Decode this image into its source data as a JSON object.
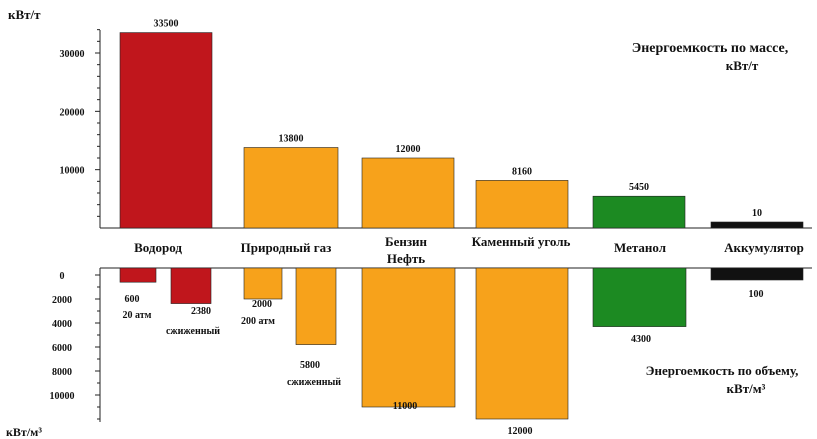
{
  "chart_data": [
    {
      "type": "bar",
      "title": "Энергоемкость по массе,",
      "title_line2": "кВт/т",
      "ylabel": "кВт/т",
      "yticks": [
        10000,
        20000,
        30000
      ],
      "ylim": [
        0,
        36000
      ],
      "categories": [
        "Водород",
        "Природный газ",
        "Бензин Нефть",
        "Каменный уголь",
        "Метанол",
        "Аккумулятор"
      ],
      "values": [
        33500,
        13800,
        12000,
        8160,
        5450,
        10
      ],
      "value_labels": [
        "33500",
        "13800",
        "12000",
        "8160",
        "5450",
        "10"
      ],
      "colors": [
        "#c0161c",
        "#f7a21b",
        "#f7a21b",
        "#f7a21b",
        "#1c8a22",
        "#111111"
      ]
    },
    {
      "type": "bar",
      "title": "Энергоемкость по объему,",
      "title_line2": "кВт/м³",
      "ylabel": "кВт/м³",
      "yticks": [
        0,
        2000,
        4000,
        6000,
        8000,
        10000
      ],
      "ylim": [
        0,
        12000
      ],
      "inverted": true,
      "bars": [
        {
          "category": "Водород",
          "value": 600,
          "label": "600",
          "note": "20 атм",
          "color": "#c0161c"
        },
        {
          "category": "Водород",
          "value": 2380,
          "label": "2380",
          "note": "сжиженный",
          "color": "#c0161c"
        },
        {
          "category": "Природный газ",
          "value": 2000,
          "label": "2000",
          "note": "200 атм",
          "color": "#f7a21b"
        },
        {
          "category": "Природный газ",
          "value": 5800,
          "label": "5800",
          "note": "сжиженный",
          "color": "#f7a21b"
        },
        {
          "category": "Бензин Нефть",
          "value": 11000,
          "label": "11000",
          "note": "",
          "color": "#f7a21b"
        },
        {
          "category": "Каменный уголь",
          "value": 12000,
          "label": "12000",
          "note": "",
          "color": "#f7a21b"
        },
        {
          "category": "Метанол",
          "value": 4300,
          "label": "4300",
          "note": "",
          "color": "#1c8a22"
        },
        {
          "category": "Аккумулятор",
          "value": 100,
          "label": "100",
          "note": "",
          "color": "#111111"
        }
      ]
    }
  ],
  "category_labels": [
    "Водород",
    "Природный газ",
    "Бензин",
    "Нефть",
    "Каменный уголь",
    "Метанол",
    "Аккумулятор"
  ]
}
